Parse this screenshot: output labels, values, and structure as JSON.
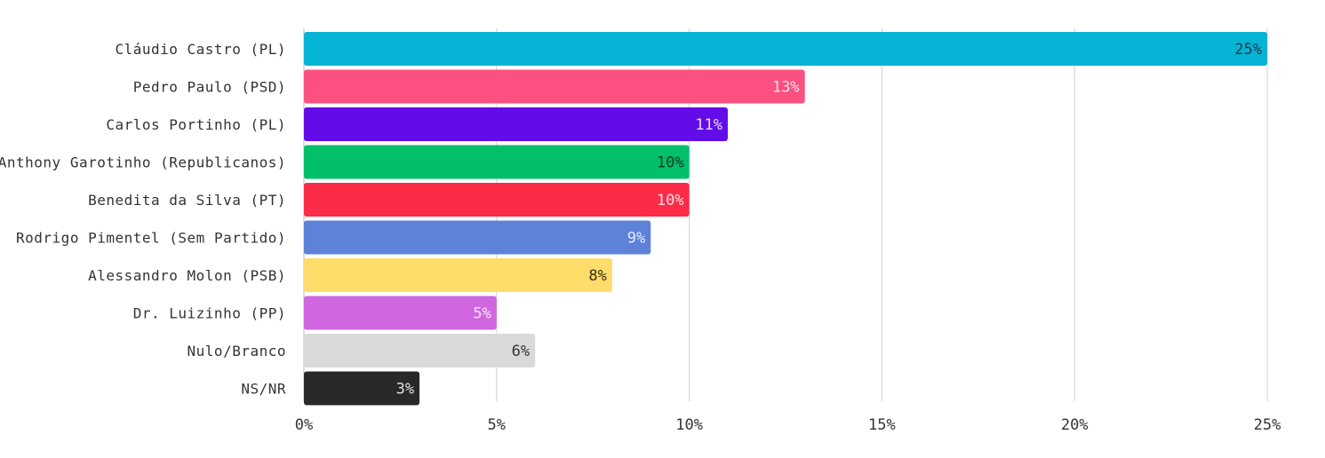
{
  "chart_data": {
    "type": "bar",
    "orientation": "horizontal",
    "title": "",
    "xlabel": "",
    "ylabel": "",
    "xlim": [
      0,
      25
    ],
    "grid": true,
    "legend": "none",
    "x_ticks": [
      {
        "value": 0,
        "label": "0%"
      },
      {
        "value": 5,
        "label": "5%"
      },
      {
        "value": 10,
        "label": "10%"
      },
      {
        "value": 15,
        "label": "15%"
      },
      {
        "value": 20,
        "label": "20%"
      },
      {
        "value": 25,
        "label": "25%"
      }
    ],
    "bars": [
      {
        "category": "Cláudio Castro (PL)",
        "value": 25,
        "label": "25%",
        "color": "#05b4d4",
        "label_color": "#1d3a4a"
      },
      {
        "category": "Pedro Paulo (PSD)",
        "value": 13,
        "label": "13%",
        "color": "#fb5080",
        "label_color": "#fde0e8"
      },
      {
        "category": "Carlos Portinho (PL)",
        "value": 11,
        "label": "11%",
        "color": "#620ce8",
        "label_color": "#e6dcff"
      },
      {
        "category": "Anthony Garotinho (Republicanos)",
        "value": 10,
        "label": "10%",
        "color": "#02bf6b",
        "label_color": "#0b3a22"
      },
      {
        "category": "Benedita da Silva (PT)",
        "value": 10,
        "label": "10%",
        "color": "#fc2b47",
        "label_color": "#ffe0e4"
      },
      {
        "category": "Rodrigo Pimentel (Sem Partido)",
        "value": 9,
        "label": "9%",
        "color": "#5e82d8",
        "label_color": "#e6ecff"
      },
      {
        "category": "Alessandro Molon (PSB)",
        "value": 8,
        "label": "8%",
        "color": "#ffdd6a",
        "label_color": "#3a3010"
      },
      {
        "category": "Dr. Luizinho (PP)",
        "value": 5,
        "label": "5%",
        "color": "#d066e0",
        "label_color": "#fbe6ff"
      },
      {
        "category": "Nulo/Branco",
        "value": 6,
        "label": "6%",
        "color": "#d9d9d9",
        "label_color": "#333333"
      },
      {
        "category": "NS/NR",
        "value": 3,
        "label": "3%",
        "color": "#282828",
        "label_color": "#e0e0e0"
      }
    ]
  }
}
